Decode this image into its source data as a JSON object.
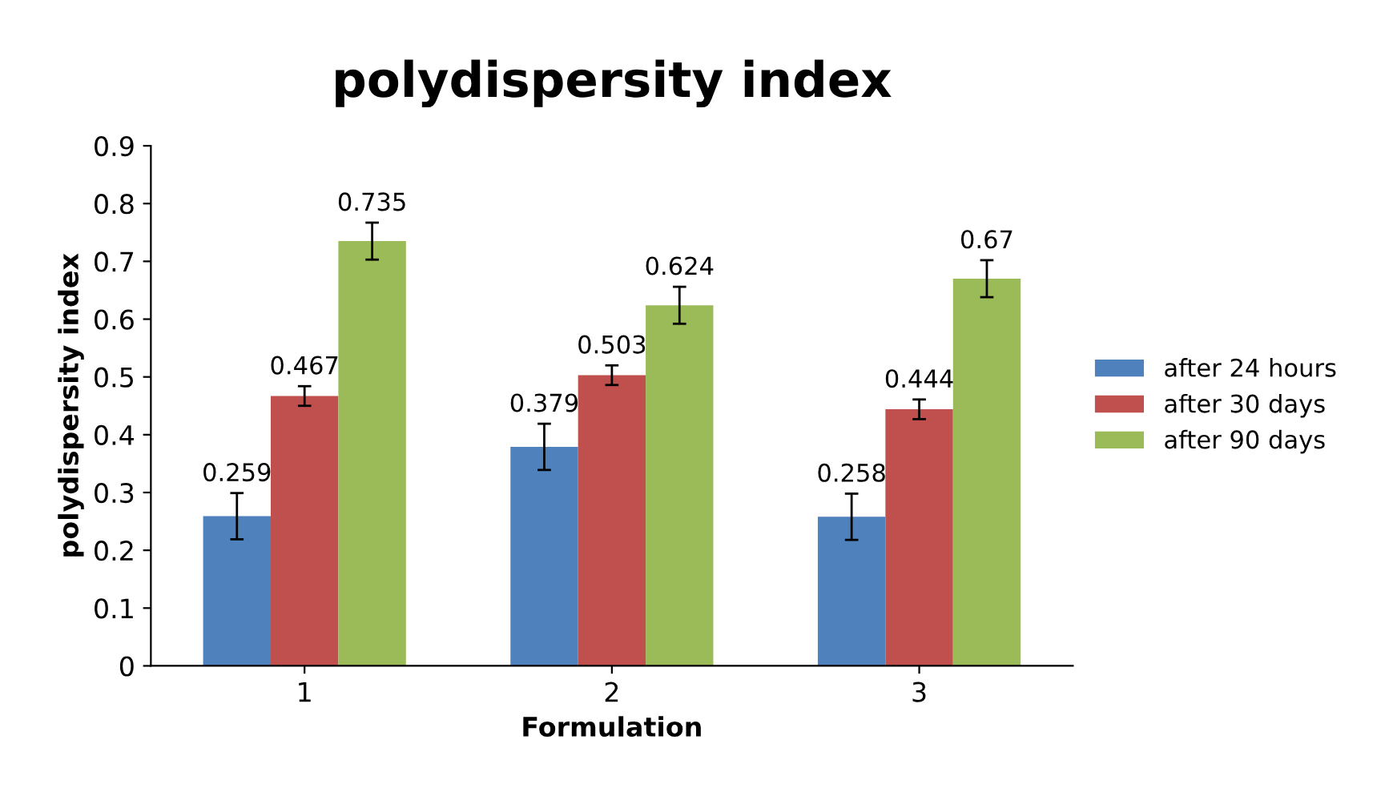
{
  "chart_data": {
    "type": "bar",
    "title": "polydispersity index",
    "xlabel": "Formulation",
    "ylabel": "polydispersity index",
    "categories": [
      "1",
      "2",
      "3"
    ],
    "series": [
      {
        "name": "after 24 hours",
        "color": "#4f81bd",
        "values": [
          0.259,
          0.379,
          0.258
        ],
        "errors": [
          0.04,
          0.04,
          0.04
        ]
      },
      {
        "name": "after 30 days",
        "color": "#c0504d",
        "values": [
          0.467,
          0.503,
          0.444
        ],
        "errors": [
          0.017,
          0.017,
          0.017
        ]
      },
      {
        "name": "after 90 days",
        "color": "#9bbb59",
        "values": [
          0.735,
          0.624,
          0.67
        ],
        "errors": [
          0.032,
          0.032,
          0.032
        ]
      }
    ],
    "ylim": [
      0,
      0.9
    ],
    "yticks": [
      0,
      0.1,
      0.2,
      0.3,
      0.4,
      0.5,
      0.6,
      0.7,
      0.8,
      0.9
    ],
    "data_labels": true,
    "grid": false,
    "legend": "right"
  }
}
